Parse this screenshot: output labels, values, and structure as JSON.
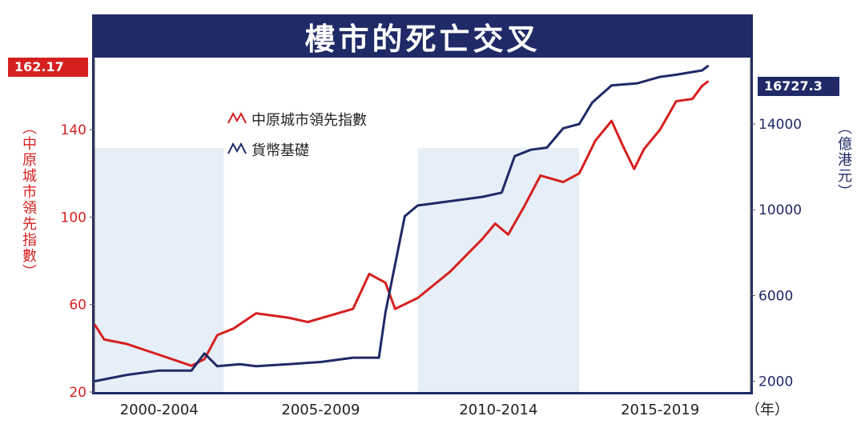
{
  "title": "樓市的死亡交叉",
  "tags": {
    "left": "162.17",
    "right": "16727.3"
  },
  "colors": {
    "navy": "#1f2a66",
    "red": "#d62020",
    "shade": "#e6eff8"
  },
  "chart_data": {
    "type": "line",
    "title": "樓市的死亡交叉",
    "y_left_label": "（中原城市領先指數）",
    "y_right_label": "（億港元）",
    "x_unit": "（年）",
    "y_left": {
      "ticks": [
        20,
        60,
        100,
        140
      ],
      "range": [
        20,
        170
      ]
    },
    "y_right": {
      "ticks": [
        2000,
        6000,
        10000,
        14000
      ],
      "range": [
        1500,
        16800
      ]
    },
    "x_range": [
      2000,
      2020
    ],
    "periods": [
      {
        "label": "2000-2004",
        "start": 2000,
        "end": 2004,
        "shaded": true
      },
      {
        "label": "2005-2009",
        "start": 2004,
        "end": 2010,
        "shaded": false
      },
      {
        "label": "2010-2014",
        "start": 2010,
        "end": 2015,
        "shaded": true
      },
      {
        "label": "2015-2019",
        "start": 2015,
        "end": 2020,
        "shaded": false
      }
    ],
    "legend": [
      "中原城市領先指數",
      "貨幣基礎"
    ],
    "series": [
      {
        "name": "中原城市領先指數",
        "axis": "left",
        "color": "#d62020",
        "points": [
          [
            2000,
            51
          ],
          [
            2000.3,
            44
          ],
          [
            2001,
            42
          ],
          [
            2002,
            37
          ],
          [
            2003,
            32
          ],
          [
            2003.4,
            35
          ],
          [
            2003.8,
            46
          ],
          [
            2004.3,
            49
          ],
          [
            2005,
            56
          ],
          [
            2006,
            54
          ],
          [
            2006.6,
            52
          ],
          [
            2007.3,
            55
          ],
          [
            2008,
            58
          ],
          [
            2008.5,
            74
          ],
          [
            2009,
            70
          ],
          [
            2009.3,
            58
          ],
          [
            2010,
            63
          ],
          [
            2011,
            75
          ],
          [
            2012,
            90
          ],
          [
            2012.4,
            97
          ],
          [
            2012.8,
            92
          ],
          [
            2013.3,
            105
          ],
          [
            2013.8,
            119
          ],
          [
            2014.5,
            116
          ],
          [
            2015,
            120
          ],
          [
            2015.5,
            135
          ],
          [
            2016,
            144
          ],
          [
            2016.4,
            131
          ],
          [
            2016.7,
            122
          ],
          [
            2017,
            131
          ],
          [
            2017.5,
            140
          ],
          [
            2018,
            153
          ],
          [
            2018.5,
            154
          ],
          [
            2018.8,
            160
          ],
          [
            2019,
            162.17
          ]
        ]
      },
      {
        "name": "貨幣基礎",
        "axis": "right",
        "color": "#1f2a66",
        "points": [
          [
            2000,
            2000
          ],
          [
            2001,
            2300
          ],
          [
            2002,
            2500
          ],
          [
            2003,
            2500
          ],
          [
            2003.4,
            3300
          ],
          [
            2003.8,
            2700
          ],
          [
            2004.5,
            2800
          ],
          [
            2005,
            2700
          ],
          [
            2006,
            2800
          ],
          [
            2007,
            2900
          ],
          [
            2008,
            3100
          ],
          [
            2008.8,
            3100
          ],
          [
            2009,
            5200
          ],
          [
            2009.6,
            9700
          ],
          [
            2010,
            10200
          ],
          [
            2011,
            10400
          ],
          [
            2012,
            10600
          ],
          [
            2012.6,
            10800
          ],
          [
            2013,
            12500
          ],
          [
            2013.5,
            12800
          ],
          [
            2014,
            12900
          ],
          [
            2014.5,
            13800
          ],
          [
            2015,
            14000
          ],
          [
            2015.4,
            15000
          ],
          [
            2016,
            15800
          ],
          [
            2016.8,
            15900
          ],
          [
            2017.5,
            16200
          ],
          [
            2018,
            16300
          ],
          [
            2018.8,
            16500
          ],
          [
            2019,
            16727.3
          ]
        ]
      }
    ]
  }
}
